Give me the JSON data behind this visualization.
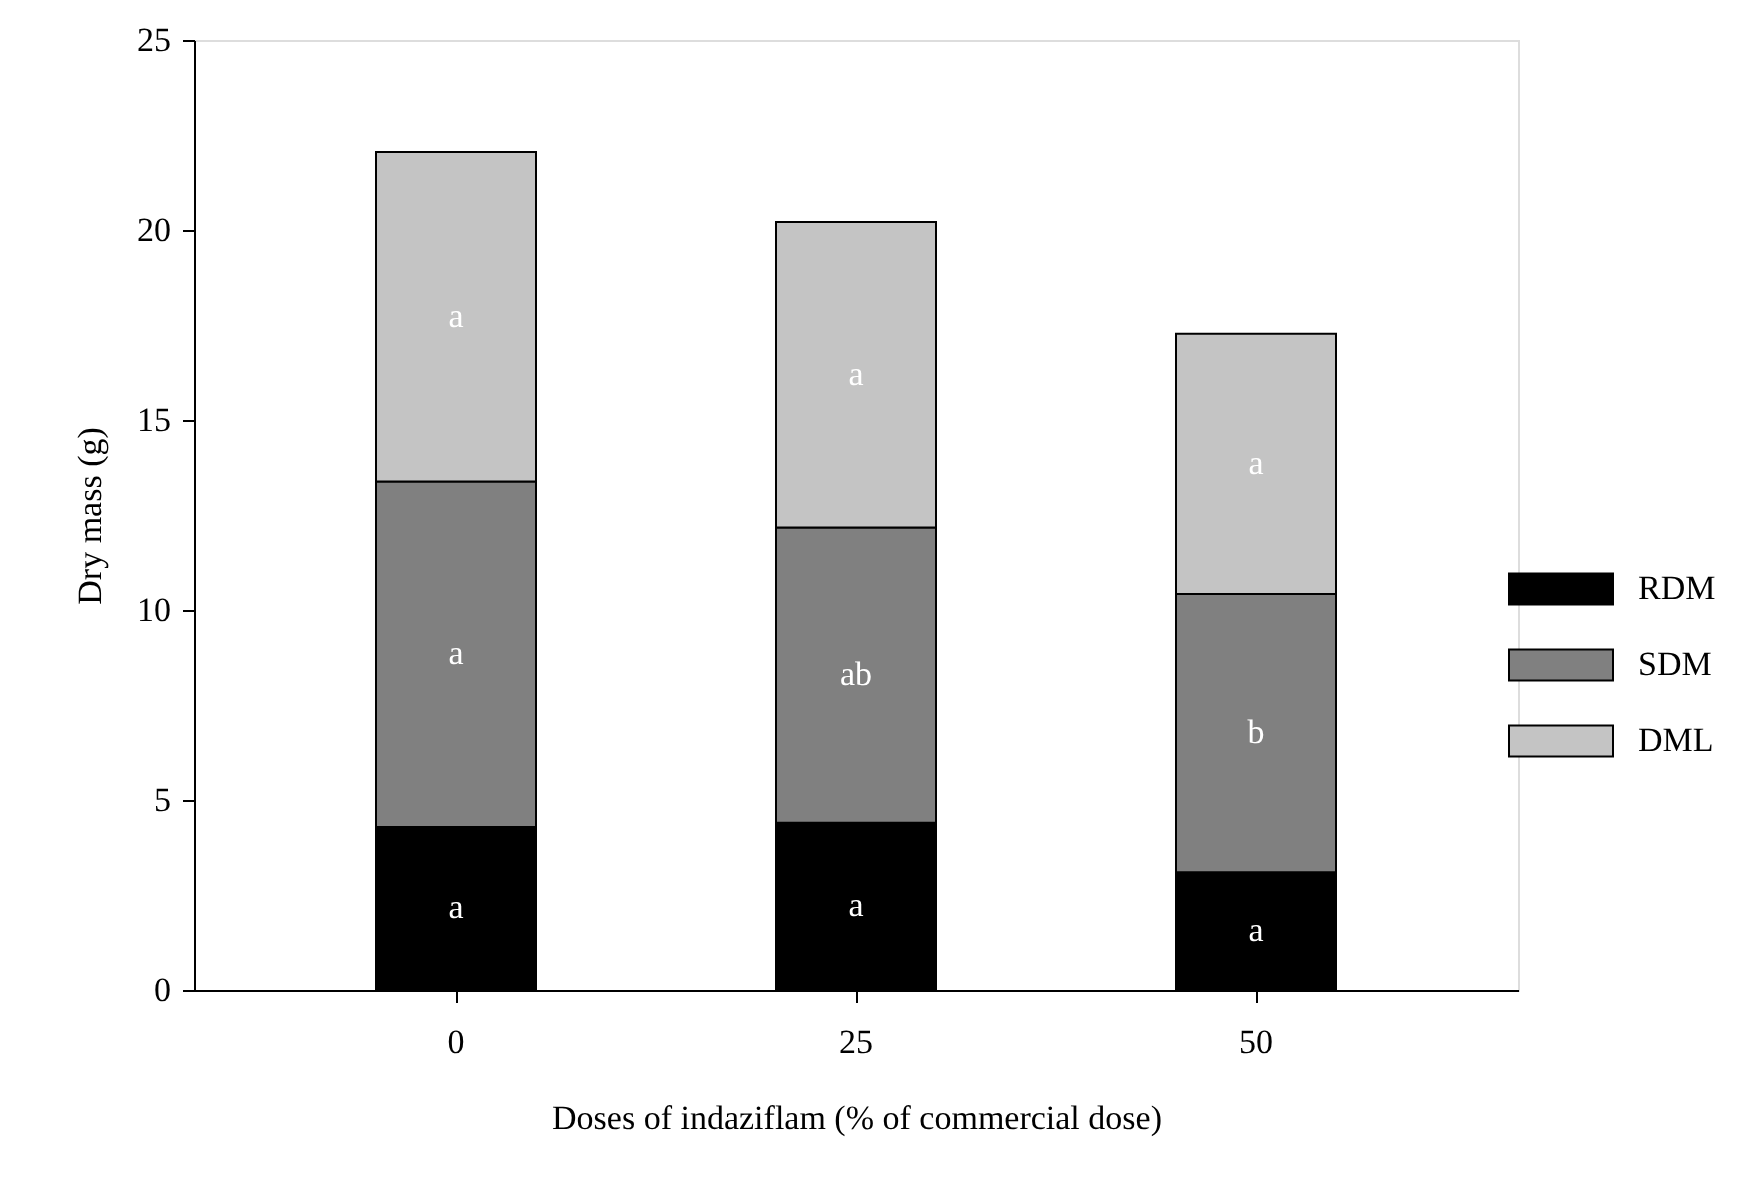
{
  "chart_data": {
    "type": "bar",
    "stacked": true,
    "xlabel": "Doses of indaziflam (% of commercial dose)",
    "ylabel": "Dry mass (g)",
    "categories": [
      "0",
      "25",
      "50"
    ],
    "series": [
      {
        "name": "RDM",
        "color": "#000000",
        "values": [
          4.29,
          4.4,
          3.1
        ],
        "value_labels": [
          "a",
          "a",
          "a"
        ]
      },
      {
        "name": "SDM",
        "color": "#808080",
        "values": [
          9.09,
          7.77,
          7.32
        ],
        "value_labels": [
          "a",
          "ab",
          "b"
        ]
      },
      {
        "name": "DML",
        "color": "#c4c4c4",
        "values": [
          8.67,
          8.04,
          6.85
        ],
        "value_labels": [
          "a",
          "a",
          "a"
        ]
      }
    ],
    "ylim": [
      0,
      25
    ],
    "yticks": [
      0,
      5,
      10,
      15,
      20,
      25
    ],
    "grid": false,
    "legend": "right"
  }
}
